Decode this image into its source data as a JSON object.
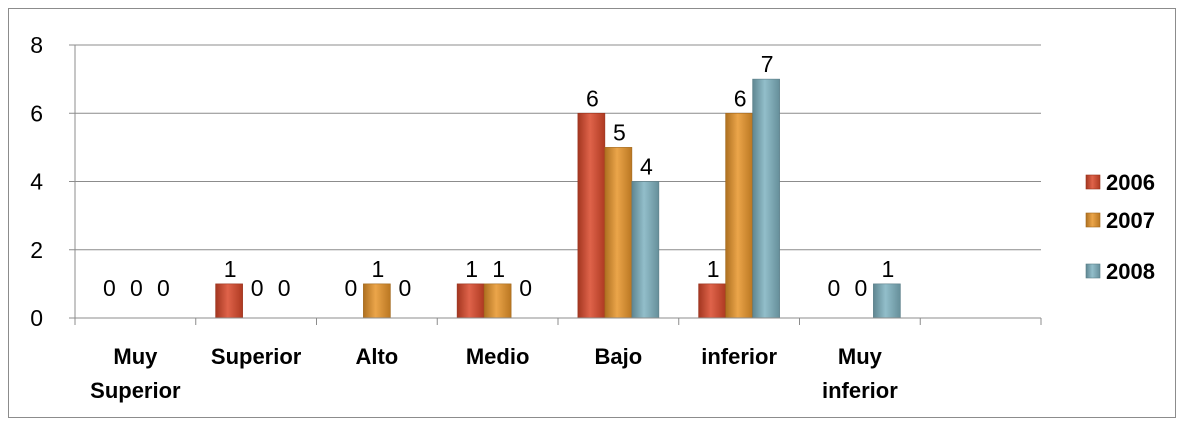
{
  "chart_data": {
    "type": "bar",
    "categories": [
      [
        "Muy",
        "Superior"
      ],
      [
        "Superior"
      ],
      [
        "Alto"
      ],
      [
        "Medio"
      ],
      [
        "Bajo"
      ],
      [
        "inferior"
      ],
      [
        "Muy",
        "inferior"
      ],
      [
        ""
      ]
    ],
    "series": [
      {
        "name": "2006",
        "color": "#d9482a",
        "values": [
          0,
          1,
          0,
          1,
          6,
          1,
          0,
          null
        ]
      },
      {
        "name": "2007",
        "color": "#e8952a",
        "values": [
          0,
          0,
          1,
          1,
          5,
          6,
          0,
          null
        ]
      },
      {
        "name": "2008",
        "color": "#7fb3c1",
        "values": [
          0,
          0,
          0,
          0,
          4,
          7,
          1,
          null
        ]
      }
    ],
    "ylim": [
      0,
      8
    ],
    "yticks": [
      0,
      2,
      4,
      6,
      8
    ],
    "grid": true,
    "legend_placement": "right",
    "title": "",
    "xlabel": "",
    "ylabel": ""
  }
}
